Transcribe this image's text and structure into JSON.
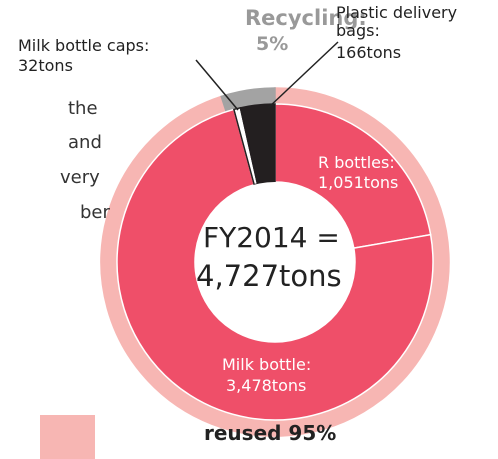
{
  "chart_data": {
    "type": "pie",
    "title": "FY2014 =",
    "center_label": "4,727tons",
    "outer": {
      "labels": [
        "reused",
        "Recycling:"
      ],
      "values": [
        95,
        5
      ],
      "value_labels": [
        "95%",
        "5%"
      ],
      "colors": [
        "#f7b6b3",
        "#a3a3a3"
      ]
    },
    "inner": {
      "labels": [
        "R bottles:",
        "Milk bottle:",
        "Milk bottle caps:",
        "Plastic delivery bags:"
      ],
      "values": [
        1051,
        3478,
        32,
        166
      ],
      "value_labels": [
        "1,051tons",
        "3,478tons",
        "32tons",
        "166tons"
      ],
      "colors": [
        "#ef4f69",
        "#ef4f69",
        "#ffffff",
        "#231f20"
      ]
    },
    "side_text": [
      "the",
      "and",
      "very",
      "ber"
    ]
  }
}
